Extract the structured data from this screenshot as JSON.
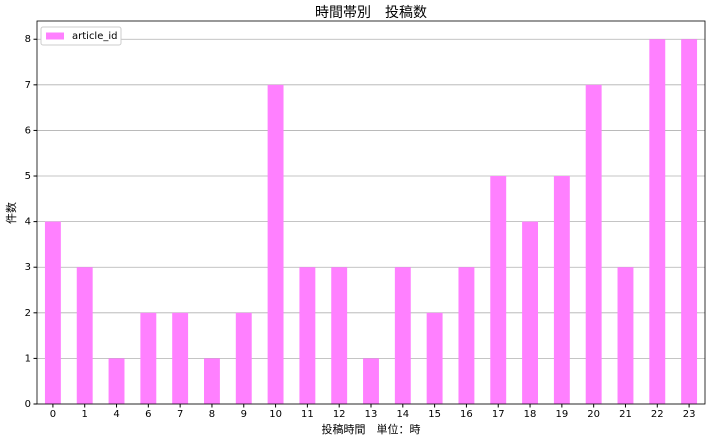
{
  "chart_data": {
    "type": "bar",
    "title": "時間帯別　投稿数",
    "x_label": "投稿時間　単位：時",
    "y_label": "件数",
    "categories": [
      "0",
      "1",
      "4",
      "6",
      "7",
      "8",
      "9",
      "10",
      "11",
      "12",
      "13",
      "14",
      "15",
      "16",
      "17",
      "18",
      "19",
      "20",
      "21",
      "22",
      "23"
    ],
    "series": [
      {
        "name": "article_id",
        "color": "#ff80ff",
        "values": [
          4,
          3,
          1,
          2,
          2,
          1,
          2,
          7,
          3,
          3,
          1,
          3,
          2,
          3,
          5,
          4,
          5,
          7,
          3,
          8,
          8
        ]
      }
    ],
    "ylim": [
      0,
      8.4
    ],
    "yticks": [
      0,
      1,
      2,
      3,
      4,
      5,
      6,
      7,
      8
    ],
    "grid": true,
    "legend": "upper-left"
  }
}
